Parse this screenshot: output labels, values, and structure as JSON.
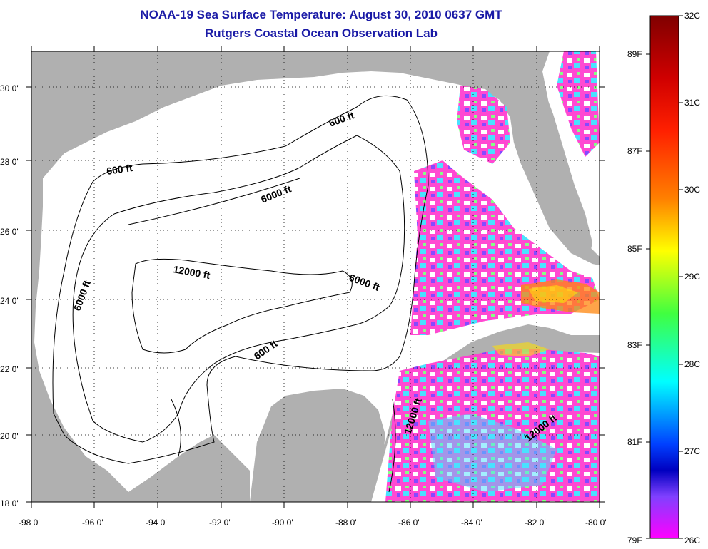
{
  "title": "NOAA-19 Sea Surface Temperature:  August 30, 2010 0637 GMT",
  "subtitle": "Rutgers Coastal Ocean Observation Lab",
  "map": {
    "lon_range": [
      -98,
      -80
    ],
    "lat_range": [
      18,
      31
    ],
    "x_ticks": [
      "-98 0'",
      "-96 0'",
      "-94 0'",
      "-92 0'",
      "-90 0'",
      "-88 0'",
      "-86 0'",
      "-84 0'",
      "-82 0'",
      "-80 0'"
    ],
    "y_ticks": [
      "18 0'",
      "20 0'",
      "22 0'",
      "24 0'",
      "26 0'",
      "28 0'",
      "30 0'"
    ],
    "contour_labels": [
      "600 ft",
      "600 ft",
      "600 ft",
      "6000 ft",
      "6000 ft",
      "6000 ft",
      "12000 ft",
      "12000 ft",
      "12000 ft"
    ],
    "land_color": "#b0b0b0",
    "water_color": "#ffffff"
  },
  "colorbar": {
    "celsius_labels": [
      "32C",
      "31C",
      "30C",
      "29C",
      "28C",
      "27C",
      "26C"
    ],
    "fahrenheit_labels": [
      "89F",
      "87F",
      "85F",
      "83F",
      "81F",
      "79F"
    ],
    "colors": [
      "#800000",
      "#ff0000",
      "#ff8000",
      "#ffff00",
      "#00ff80",
      "#00ffff",
      "#0000ff",
      "#ff00ff"
    ]
  }
}
